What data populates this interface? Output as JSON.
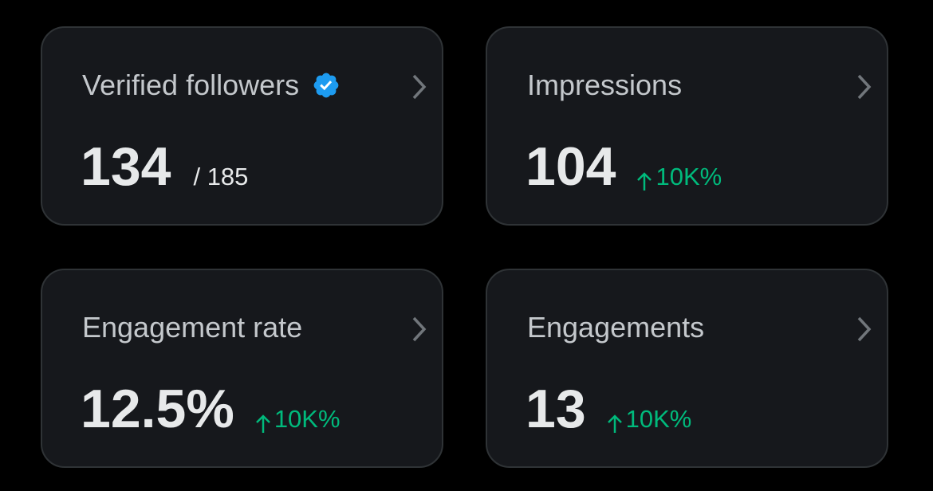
{
  "cards": [
    {
      "title": "Verified followers",
      "value": "134",
      "secondary": "/ 185"
    },
    {
      "title": "Impressions",
      "value": "104",
      "change": "10K%"
    },
    {
      "title": "Engagement rate",
      "value": "12.5%",
      "change": "10K%"
    },
    {
      "title": "Engagements",
      "value": "13",
      "change": "10K%"
    }
  ]
}
